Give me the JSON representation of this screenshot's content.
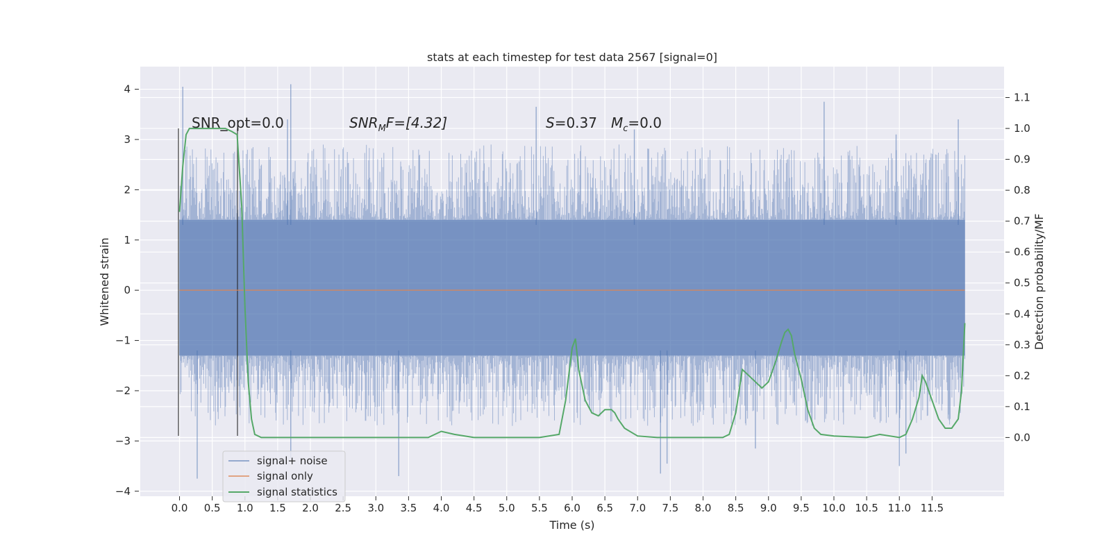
{
  "chart_data": {
    "type": "line",
    "title": "stats at each timestep for test data 2567 [signal=0]",
    "xlabel": "Time (s)",
    "ylabel": "Whitened strain",
    "ylabel_right": "Detection probability/MF",
    "xlim": [
      -0.6,
      12.6
    ],
    "ylim": [
      -4.1,
      4.45
    ],
    "ylim_right": [
      -0.19,
      1.2
    ],
    "x_ticks": [
      "0.0",
      "0.5",
      "1.0",
      "1.5",
      "2.0",
      "2.5",
      "3.0",
      "3.5",
      "4.0",
      "4.5",
      "5.0",
      "5.5",
      "6.0",
      "6.5",
      "7.0",
      "7.5",
      "8.0",
      "8.5",
      "9.0",
      "9.5",
      "10.0",
      "10.5",
      "11.0",
      "11.5"
    ],
    "y_ticks": [
      "4",
      "3",
      "2",
      "1",
      "0",
      "−1",
      "−2",
      "−3",
      "−4"
    ],
    "y_ticks_right": [
      "1.1",
      "1.0",
      "0.9",
      "0.8",
      "0.7",
      "0.6",
      "0.5",
      "0.4",
      "0.3",
      "0.2",
      "0.1",
      "0.0"
    ],
    "grid": true,
    "legend_position": "lower-left",
    "annotations": {
      "snr_opt": "SNR_opt=0.0",
      "snr_mf_main": "SNR",
      "snr_mf_sub": "M",
      "snr_mf_rest": "F=[4.32]",
      "s_var": "S",
      "s_val": "=0.37",
      "mc_var": "M",
      "mc_sub": "c",
      "mc_val": "=0.0"
    },
    "series": [
      {
        "name": "signal+ noise",
        "color": "#4c72b0",
        "axis": "left",
        "x_range": [
          0,
          12
        ],
        "envelope": {
          "typical_upper": 1.4,
          "typical_lower": -1.3
        },
        "notable_peaks": [
          [
            0.05,
            4.05
          ],
          [
            1.7,
            4.1
          ],
          [
            1.65,
            3.4
          ],
          [
            5.45,
            3.65
          ],
          [
            9.85,
            3.75
          ],
          [
            11.9,
            3.4
          ],
          [
            6.95,
            3.2
          ],
          [
            10.95,
            3.1
          ]
        ],
        "notable_troughs": [
          [
            0.27,
            -3.75
          ],
          [
            1.7,
            -3.35
          ],
          [
            3.35,
            -3.7
          ],
          [
            7.35,
            -3.65
          ],
          [
            7.45,
            -3.45
          ],
          [
            11.0,
            -3.5
          ],
          [
            11.1,
            -3.25
          ],
          [
            8.8,
            -3.15
          ]
        ]
      },
      {
        "name": "signal only",
        "color": "#dd8452",
        "axis": "left",
        "x": [
          0,
          12
        ],
        "y": [
          0,
          0
        ]
      },
      {
        "name": "signal statistics",
        "color": "#55a868",
        "axis": "right",
        "x": [
          0.0,
          0.05,
          0.1,
          0.15,
          0.2,
          0.3,
          0.5,
          0.7,
          0.8,
          0.88,
          0.95,
          1.0,
          1.05,
          1.1,
          1.15,
          1.25,
          1.5,
          2.0,
          2.5,
          3.0,
          3.5,
          3.8,
          4.0,
          4.2,
          4.5,
          5.0,
          5.5,
          5.8,
          5.9,
          6.0,
          6.05,
          6.1,
          6.2,
          6.3,
          6.4,
          6.5,
          6.6,
          6.65,
          6.7,
          6.8,
          7.0,
          7.3,
          7.5,
          8.0,
          8.3,
          8.4,
          8.5,
          8.6,
          8.7,
          8.8,
          8.9,
          9.0,
          9.1,
          9.2,
          9.25,
          9.3,
          9.35,
          9.4,
          9.5,
          9.6,
          9.7,
          9.8,
          10.0,
          10.5,
          10.6,
          10.7,
          11.0,
          11.1,
          11.2,
          11.3,
          11.35,
          11.4,
          11.5,
          11.6,
          11.7,
          11.8,
          11.9,
          11.95,
          12.0
        ],
        "y": [
          0.73,
          0.88,
          0.98,
          1.0,
          1.0,
          1.0,
          1.0,
          1.0,
          0.99,
          0.98,
          0.75,
          0.42,
          0.18,
          0.06,
          0.01,
          0.0,
          0.0,
          0.0,
          0.0,
          0.0,
          0.0,
          0.0,
          0.02,
          0.01,
          0.0,
          0.0,
          0.0,
          0.01,
          0.12,
          0.29,
          0.32,
          0.22,
          0.12,
          0.08,
          0.07,
          0.09,
          0.09,
          0.08,
          0.06,
          0.03,
          0.005,
          0.0,
          0.0,
          0.0,
          0.0,
          0.01,
          0.08,
          0.22,
          0.2,
          0.18,
          0.16,
          0.18,
          0.24,
          0.31,
          0.34,
          0.35,
          0.33,
          0.27,
          0.19,
          0.09,
          0.03,
          0.01,
          0.005,
          0.0,
          0.005,
          0.01,
          0.0,
          0.01,
          0.06,
          0.13,
          0.2,
          0.18,
          0.12,
          0.06,
          0.03,
          0.03,
          0.06,
          0.15,
          0.37
        ]
      }
    ]
  }
}
